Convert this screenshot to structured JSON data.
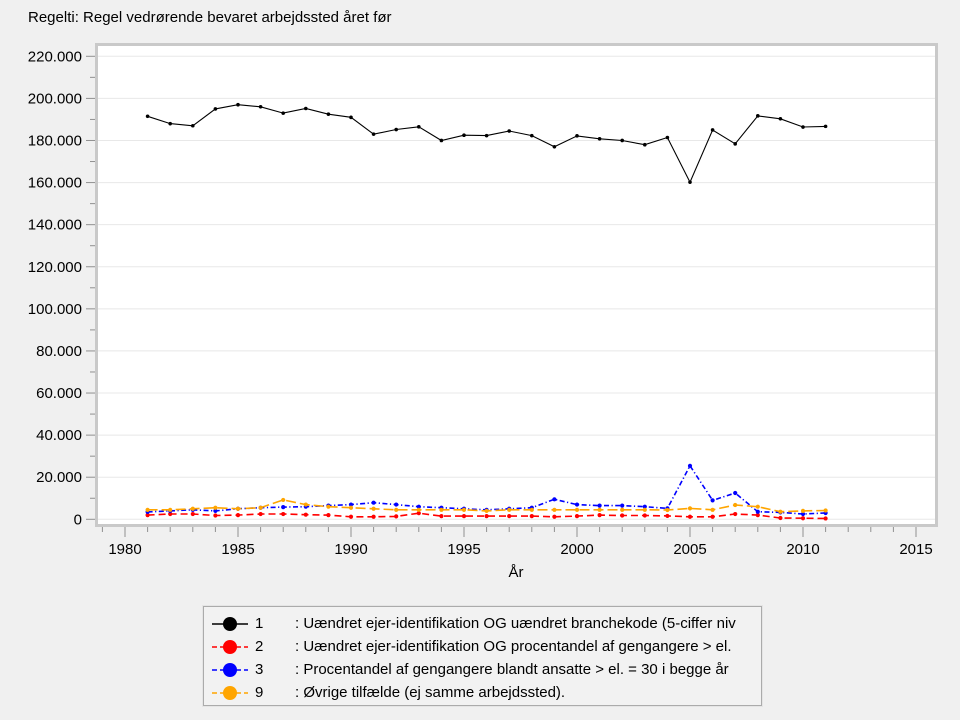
{
  "title": "Regelti: Regel vedrørende bevaret arbejdssted året før",
  "chart_data": {
    "type": "line",
    "x": [
      1981,
      1982,
      1983,
      1984,
      1985,
      1986,
      1987,
      1988,
      1989,
      1990,
      1991,
      1992,
      1993,
      1994,
      1995,
      1996,
      1997,
      1998,
      1999,
      2000,
      2001,
      2002,
      2003,
      2004,
      2005,
      2006,
      2007,
      2008,
      2009,
      2010,
      2011
    ],
    "series": [
      {
        "label": "1",
        "desc": ": Uændret ejer-identifikation OG uændret branchekode (5-ciffer niv",
        "color": "#000000",
        "dash": "",
        "values": [
          191500,
          188000,
          187000,
          195000,
          197000,
          196000,
          193000,
          195200,
          192500,
          191000,
          183000,
          185200,
          186500,
          180000,
          182500,
          182300,
          184500,
          182300,
          177000,
          182200,
          180800,
          180000,
          178000,
          181400,
          160200,
          185000,
          178400,
          191700,
          190300,
          186400,
          186700
        ]
      },
      {
        "label": "2",
        "desc": ": Uændret ejer-identifikation OG procentandel af gengangere > el.",
        "color": "#ff0000",
        "dash": "7 4",
        "values": [
          2000,
          2500,
          2500,
          1800,
          2000,
          2500,
          2500,
          2200,
          2000,
          1200,
          1200,
          1400,
          2900,
          1500,
          1500,
          1500,
          1500,
          1500,
          1200,
          1500,
          2000,
          1800,
          1800,
          1600,
          1200,
          1200,
          2500,
          2000,
          600,
          500,
          400
        ]
      },
      {
        "label": "3",
        "desc": ": Procentandel af gengangere blandt ansatte > el. = 30 i begge år",
        "color": "#0000ff",
        "dash": "5 2.5 1.2 2.5",
        "values": [
          3500,
          4000,
          4500,
          4000,
          5000,
          5500,
          5800,
          6000,
          6500,
          7000,
          7900,
          7000,
          6000,
          5500,
          5000,
          4500,
          5000,
          5500,
          9500,
          7000,
          6500,
          6500,
          6000,
          5200,
          25400,
          9000,
          12500,
          3600,
          3300,
          2500,
          3000
        ]
      },
      {
        "label": "9",
        "desc": ": Øvrige tilfælde (ej samme arbejdssted).",
        "color": "#ffa500",
        "dash": "10 4",
        "values": [
          4500,
          4500,
          5000,
          5500,
          5000,
          5500,
          9200,
          7000,
          6000,
          5500,
          5000,
          4500,
          4500,
          4500,
          4500,
          4000,
          4500,
          4500,
          4500,
          4500,
          4500,
          4500,
          4500,
          4400,
          5200,
          4500,
          6800,
          6000,
          3600,
          4000,
          4200
        ]
      }
    ],
    "x_axis": {
      "label": "År",
      "min": 1980,
      "max": 2015,
      "major_step": 5,
      "minor_step": 1,
      "tick_labels": [
        "1980",
        "1985",
        "1990",
        "1995",
        "2000",
        "2005",
        "2010",
        "2015"
      ]
    },
    "y_axis": {
      "min": 0,
      "max": 220000,
      "major_step": 20000,
      "minor_step": 10000,
      "tick_labels": [
        "0",
        "20.000",
        "40.000",
        "60.000",
        "80.000",
        "100.000",
        "120.000",
        "140.000",
        "160.000",
        "180.000",
        "200.000",
        "220.000"
      ]
    },
    "grid": "horizontal-major-only",
    "legend_position": "bottom",
    "colors": {
      "page_background": "#f0f0f0",
      "plot_background": "#ffffff",
      "plot_border": "#c9c9c9",
      "gridline": "#e8e8e8",
      "tick": "#909090"
    }
  }
}
